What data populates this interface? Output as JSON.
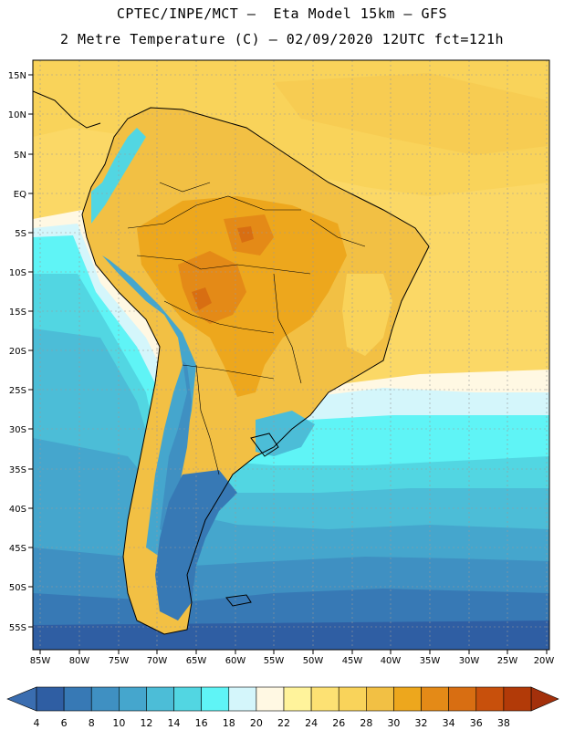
{
  "title_line1": "CPTEC/INPE/MCT –  Eta Model 15km – GFS",
  "title_line2": "2 Metre Temperature (C) – 02/09/2020 12UTC fct=121h",
  "lat_labels": [
    "15N",
    "10N",
    "5N",
    "EQ",
    "5S",
    "10S",
    "15S",
    "20S",
    "25S",
    "30S",
    "35S",
    "40S",
    "45S",
    "50S",
    "55S"
  ],
  "lon_labels": [
    "85W",
    "80W",
    "75W",
    "70W",
    "65W",
    "60W",
    "55W",
    "50W",
    "45W",
    "40W",
    "35W",
    "30W",
    "25W",
    "20W"
  ],
  "colorbar": {
    "labels": [
      "4",
      "6",
      "8",
      "10",
      "12",
      "14",
      "16",
      "18",
      "20",
      "22",
      "24",
      "26",
      "28",
      "30",
      "32",
      "34",
      "36",
      "38"
    ],
    "colors": [
      "#2f5ea3",
      "#3779b5",
      "#3f90c2",
      "#45a6cd",
      "#4cbdd7",
      "#52d6e2",
      "#5ff4f6",
      "#d4f6fb",
      "#fff8e3",
      "#fff39b",
      "#fde173",
      "#f9d35a",
      "#f2c044",
      "#eda71d",
      "#e48a17",
      "#d86e12",
      "#c8500c",
      "#b23a08"
    ],
    "under_color": "#3a6db0",
    "over_color": "#a3300b"
  }
}
